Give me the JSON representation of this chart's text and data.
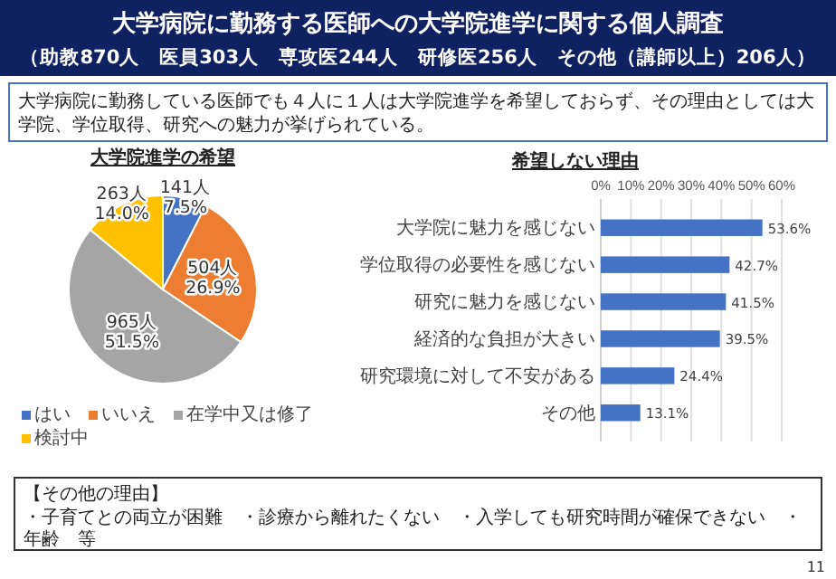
{
  "chart_data": [
    {
      "type": "other",
      "title": "大学病院に勤務する医師への大学院進学に関する個人調査",
      "subtitle": "（助教870人　医員303人　専攻医244人　研修医256人　その他（講師以上）206人）",
      "annotations": [
        "大学病院に勤務している医師でも４人に１人は大学院進学を希望しておらず、その理由としては大学院、学位取得、研究への魅力が挙げられている。"
      ]
    },
    {
      "type": "pie",
      "title": "大学院進学の希望",
      "categories": [
        "はい",
        "いいえ",
        "在学中又は修了",
        "検討中"
      ],
      "values": [
        141,
        504,
        965,
        263
      ],
      "colors": [
        "#4472c4",
        "#ed7d31",
        "#a5a5a5",
        "#ffc000"
      ],
      "value_labels": [
        "141人\n7.5%",
        "504人\n26.9%",
        "965人\n51.5%",
        "263人\n14.0%"
      ],
      "legend": "bottom"
    },
    {
      "type": "bar",
      "orientation": "horizontal",
      "title": "希望しない理由",
      "categories": [
        "大学院に魅力を感じない",
        "学位取得の必要性を感じない",
        "研究に魅力を感じない",
        "経済的な負担が大きい",
        "研究環境に対して不安がある",
        "その他"
      ],
      "values": [
        53.6,
        42.7,
        41.5,
        39.5,
        24.4,
        13.1
      ],
      "value_labels": [
        "53.6%",
        "42.7%",
        "41.5%",
        "39.5%",
        "24.4%",
        "13.1%"
      ],
      "color": "#4472c4",
      "xlim": [
        0,
        60
      ],
      "xticks": [
        {
          "value": 0,
          "label": "0%"
        },
        {
          "value": 10,
          "label": "10%"
        },
        {
          "value": 20,
          "label": "20%"
        },
        {
          "value": 30,
          "label": "30%"
        },
        {
          "value": 40,
          "label": "40%"
        },
        {
          "value": 50,
          "label": "50%"
        },
        {
          "value": 60,
          "label": "60%"
        }
      ],
      "grid": "x"
    },
    {
      "type": "other",
      "annotations": [
        "【その他の理由】",
        "・子育てとの両立が困難　・診療から離れたくない　・入学しても研究時間が確保できない　・年齢　等",
        "11"
      ]
    }
  ]
}
